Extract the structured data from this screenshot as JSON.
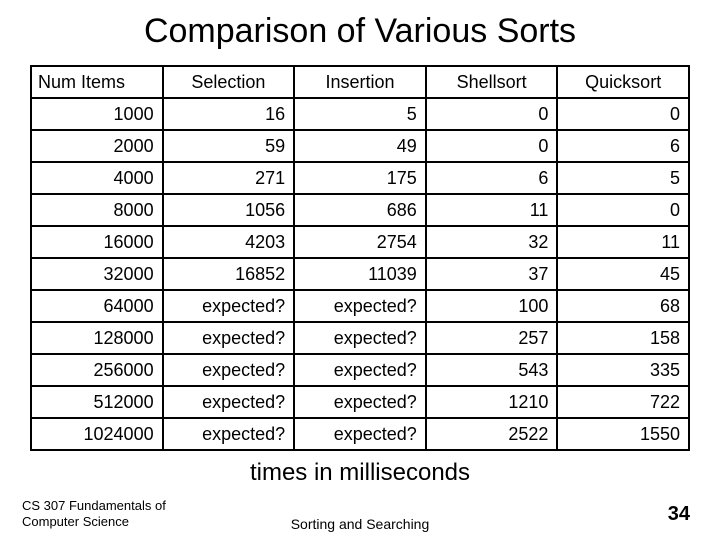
{
  "title": "Comparison of Various Sorts",
  "subtitle": "times in milliseconds",
  "footer": {
    "course_line1": "CS 307 Fundamentals of",
    "course_line2": "Computer Science",
    "topic": "Sorting and Searching",
    "slide_number": "34"
  },
  "table": {
    "type": "table",
    "columns": [
      "Num Items",
      "Selection",
      "Insertion",
      "Shellsort",
      "Quicksort"
    ],
    "column_align": [
      "right",
      "right",
      "right",
      "right",
      "right"
    ],
    "header_align": [
      "left",
      "center",
      "center",
      "center",
      "center"
    ],
    "rows": [
      [
        "1000",
        "16",
        "5",
        "0",
        "0"
      ],
      [
        "2000",
        "59",
        "49",
        "0",
        "6"
      ],
      [
        "4000",
        "271",
        "175",
        "6",
        "5"
      ],
      [
        "8000",
        "1056",
        "686",
        "11",
        "0"
      ],
      [
        "16000",
        "4203",
        "2754",
        "32",
        "11"
      ],
      [
        "32000",
        "16852",
        "11039",
        "37",
        "45"
      ],
      [
        "64000",
        "expected?",
        "expected?",
        "100",
        "68"
      ],
      [
        "128000",
        "expected?",
        "expected?",
        "257",
        "158"
      ],
      [
        "256000",
        "expected?",
        "expected?",
        "543",
        "335"
      ],
      [
        "512000",
        "expected?",
        "expected?",
        "1210",
        "722"
      ],
      [
        "1024000",
        "expected?",
        "expected?",
        "2522",
        "1550"
      ]
    ],
    "border_color": "#000000",
    "background_color": "#ffffff",
    "header_fontsize": 18,
    "cell_fontsize": 18
  }
}
